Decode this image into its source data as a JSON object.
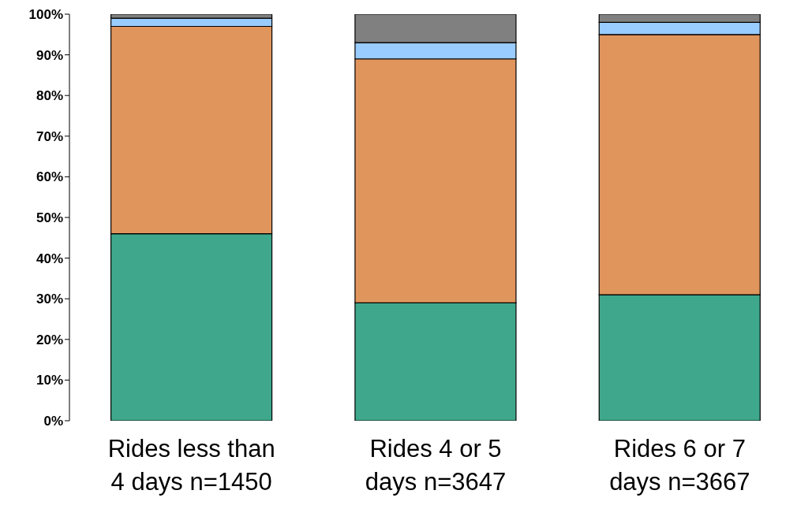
{
  "chart_data": {
    "type": "bar",
    "stacked": true,
    "categories": [
      "Rides less than 4 days n=1450",
      "Rides 4 or 5 days n=3647",
      "Rides 6 or 7 days n=3667"
    ],
    "series": [
      {
        "color": "#3fa88c",
        "values": [
          46,
          29,
          31
        ]
      },
      {
        "color": "#e0955c",
        "values": [
          51,
          60,
          64
        ]
      },
      {
        "color": "#99ccff",
        "values": [
          2,
          4,
          3
        ]
      },
      {
        "color": "#808080",
        "values": [
          1,
          7,
          2
        ]
      }
    ],
    "ylim": [
      0,
      100
    ],
    "yticks": [
      {
        "value": 0,
        "label": "0%"
      },
      {
        "value": 10,
        "label": "10%"
      },
      {
        "value": 20,
        "label": "20%"
      },
      {
        "value": 30,
        "label": "30%"
      },
      {
        "value": 40,
        "label": "40%"
      },
      {
        "value": 50,
        "label": "50%"
      },
      {
        "value": 60,
        "label": "60%"
      },
      {
        "value": 70,
        "label": "70%"
      },
      {
        "value": 80,
        "label": "80%"
      },
      {
        "value": 90,
        "label": "90%"
      },
      {
        "value": 100,
        "label": "100%"
      }
    ],
    "grid": false,
    "legend": false
  }
}
